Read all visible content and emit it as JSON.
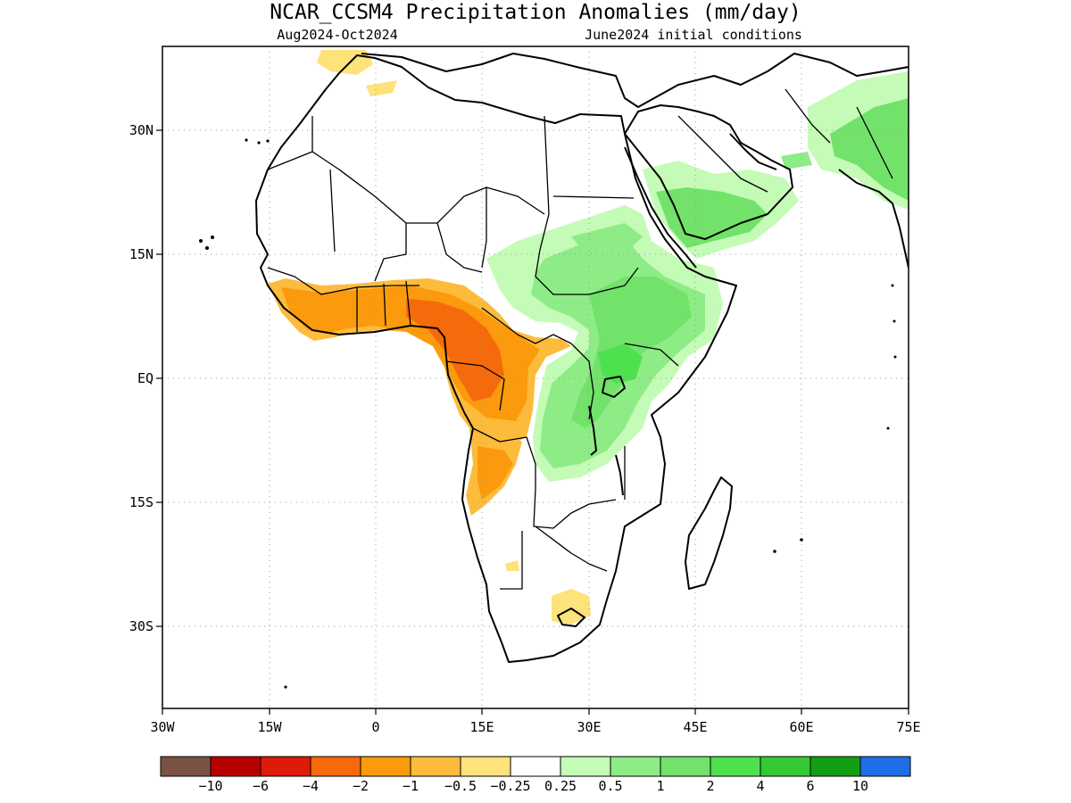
{
  "title": "NCAR_CCSM4 Precipitation Anomalies (mm/day)",
  "subtitle_left": "Aug2024-Oct2024",
  "subtitle_right": "June2024 initial conditions",
  "x_ticks": [
    "30W",
    "15W",
    "0",
    "15E",
    "30E",
    "45E",
    "60E",
    "75E"
  ],
  "y_ticks": [
    "30N",
    "15N",
    "EQ",
    "15S",
    "30S"
  ],
  "colorbar": {
    "colors": [
      "#7a5244",
      "#b80000",
      "#de1a0a",
      "#f56a0a",
      "#fb9a0c",
      "#fdbb3c",
      "#fee27a",
      "#ffffff",
      "#c4fbb6",
      "#8eec86",
      "#72e26a",
      "#4fe04f",
      "#34c934",
      "#12a012",
      "#1f6ee8"
    ],
    "labels": [
      "−10",
      "−6",
      "−4",
      "−2",
      "−1",
      "−0.5",
      "−0.25",
      "0.25",
      "0.5",
      "1",
      "2",
      "4",
      "6",
      "10"
    ]
  },
  "regions": [
    {
      "name": "sahel-west-africa-dry",
      "level": "-1"
    },
    {
      "name": "central-africa-dry-core",
      "level": "-2"
    },
    {
      "name": "angola-dry",
      "level": "-1"
    },
    {
      "name": "east-africa-wet",
      "level": "1"
    },
    {
      "name": "ethiopia-highlands-wet",
      "level": "2"
    },
    {
      "name": "arabia-wet",
      "level": "1"
    },
    {
      "name": "south-asia-wet",
      "level": "1"
    },
    {
      "name": "south-africa-dry",
      "level": "-0.5"
    }
  ]
}
